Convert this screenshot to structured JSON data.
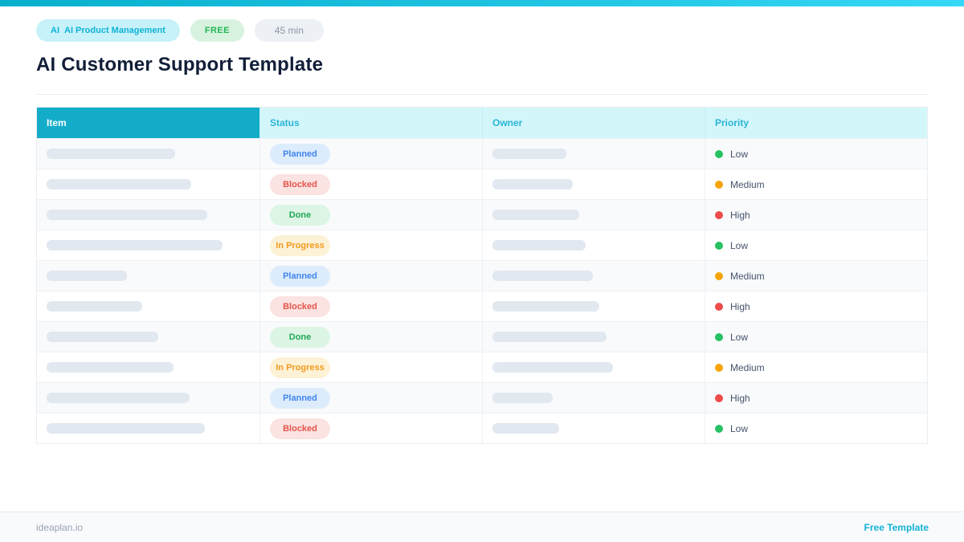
{
  "colors": {
    "topbar_gradient_left": "#09b0ce",
    "topbar_gradient_right": "#36d8f6",
    "header_item_bg": "#14adc9",
    "header_light_bg": "#d3f6fb",
    "header_light_text": "#2bb5d6",
    "row_alt_bg": "#f8fafc",
    "placeholder_bar": "#e2e8f0",
    "footer_link": "#14b2d6"
  },
  "header": {
    "badges": [
      {
        "prefix": "AI",
        "label": "AI Product Management",
        "bg": "#c7f2fa",
        "color": "#0fb3d6"
      },
      {
        "label": "FREE",
        "bg": "#d7f3e0",
        "color": "#25b553"
      },
      {
        "label": "45 min",
        "bg": "#edf0f4",
        "color": "#8d97a7"
      }
    ],
    "title": "AI Customer Support Template"
  },
  "table": {
    "columns": [
      "Item",
      "Status",
      "Owner",
      "Priority"
    ],
    "status_styles": {
      "Planned": {
        "bg": "#dcecfc",
        "color": "#4285ec"
      },
      "Blocked": {
        "bg": "#fbe3e2",
        "color": "#e4544b"
      },
      "Done": {
        "bg": "#dcf5e5",
        "color": "#21a855"
      },
      "In Progress": {
        "bg": "#fdf1d6",
        "color": "#f29b20"
      }
    },
    "priority_styles": {
      "Low": "#27c163",
      "Medium": "#f5a50b",
      "High": "#ee4b4b"
    },
    "rows": [
      {
        "item_bar_width": 160,
        "status": "Planned",
        "owner_bar_width": 92,
        "priority": "Low"
      },
      {
        "item_bar_width": 180,
        "status": "Blocked",
        "owner_bar_width": 100,
        "priority": "Medium"
      },
      {
        "item_bar_width": 200,
        "status": "Done",
        "owner_bar_width": 108,
        "priority": "High"
      },
      {
        "item_bar_width": 219,
        "status": "In Progress",
        "owner_bar_width": 116,
        "priority": "Low"
      },
      {
        "item_bar_width": 100,
        "status": "Planned",
        "owner_bar_width": 125,
        "priority": "Medium"
      },
      {
        "item_bar_width": 119,
        "status": "Blocked",
        "owner_bar_width": 133,
        "priority": "High"
      },
      {
        "item_bar_width": 139,
        "status": "Done",
        "owner_bar_width": 142,
        "priority": "Low"
      },
      {
        "item_bar_width": 158,
        "status": "In Progress",
        "owner_bar_width": 150,
        "priority": "Medium"
      },
      {
        "item_bar_width": 178,
        "status": "Planned",
        "owner_bar_width": 75,
        "priority": "High"
      },
      {
        "item_bar_width": 197,
        "status": "Blocked",
        "owner_bar_width": 83,
        "priority": "Low"
      }
    ]
  },
  "footer": {
    "left": "ideaplan.io",
    "right": "Free Template"
  }
}
